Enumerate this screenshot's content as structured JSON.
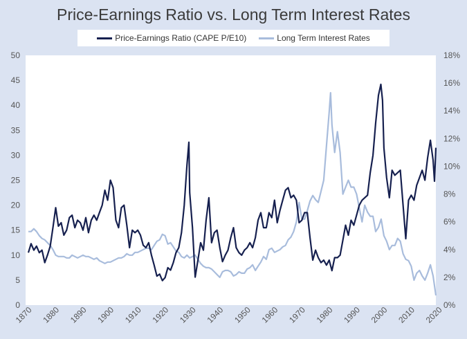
{
  "chart_data": {
    "type": "line",
    "title": "Price-Earnings Ratio vs. Long Term Interest Rates",
    "legend": {
      "position": "top"
    },
    "grid": false,
    "x_axis": {
      "range": [
        1870,
        2020
      ],
      "ticks": [
        "1870",
        "1880",
        "1890",
        "1900",
        "1910",
        "1920",
        "1930",
        "1940",
        "1950",
        "1960",
        "1970",
        "1980",
        "1990",
        "2000",
        "2010",
        "2020"
      ]
    },
    "y_axis_left": {
      "range": [
        0,
        50
      ],
      "ticks": [
        "0",
        "5",
        "10",
        "15",
        "20",
        "25",
        "30",
        "35",
        "40",
        "45",
        "50"
      ]
    },
    "y_axis_right": {
      "range": [
        0,
        18
      ],
      "ticks": [
        "0%",
        "2%",
        "4%",
        "6%",
        "8%",
        "10%",
        "12%",
        "14%",
        "16%",
        "18%"
      ]
    },
    "series": [
      {
        "name": "Price-Earnings Ratio (CAPE P/E10)",
        "axis": "left",
        "color": "#16204f",
        "points": [
          [
            1871,
            10.5
          ],
          [
            1872,
            12.3
          ],
          [
            1873,
            11.0
          ],
          [
            1874,
            11.8
          ],
          [
            1875,
            10.5
          ],
          [
            1876,
            11.0
          ],
          [
            1877,
            8.5
          ],
          [
            1878,
            10.0
          ],
          [
            1879,
            11.8
          ],
          [
            1880,
            15.5
          ],
          [
            1881,
            19.5
          ],
          [
            1882,
            15.8
          ],
          [
            1883,
            16.5
          ],
          [
            1884,
            14.0
          ],
          [
            1885,
            15.0
          ],
          [
            1886,
            17.5
          ],
          [
            1887,
            18.0
          ],
          [
            1888,
            15.5
          ],
          [
            1889,
            17.0
          ],
          [
            1890,
            16.5
          ],
          [
            1891,
            15.0
          ],
          [
            1892,
            17.5
          ],
          [
            1893,
            14.5
          ],
          [
            1894,
            17.0
          ],
          [
            1895,
            18.0
          ],
          [
            1896,
            17.0
          ],
          [
            1897,
            18.5
          ],
          [
            1898,
            20.0
          ],
          [
            1899,
            23.0
          ],
          [
            1900,
            21.0
          ],
          [
            1901,
            25.0
          ],
          [
            1902,
            23.5
          ],
          [
            1903,
            17.0
          ],
          [
            1904,
            15.5
          ],
          [
            1905,
            19.5
          ],
          [
            1906,
            20.0
          ],
          [
            1907,
            16.0
          ],
          [
            1908,
            11.5
          ],
          [
            1909,
            15.0
          ],
          [
            1910,
            14.5
          ],
          [
            1911,
            15.0
          ],
          [
            1912,
            14.0
          ],
          [
            1913,
            12.0
          ],
          [
            1914,
            11.5
          ],
          [
            1915,
            12.5
          ],
          [
            1916,
            10.0
          ],
          [
            1917,
            8.0
          ],
          [
            1918,
            5.8
          ],
          [
            1919,
            6.2
          ],
          [
            1920,
            4.9
          ],
          [
            1921,
            5.5
          ],
          [
            1922,
            7.5
          ],
          [
            1923,
            7.0
          ],
          [
            1924,
            8.5
          ],
          [
            1925,
            10.5
          ],
          [
            1926,
            11.5
          ],
          [
            1927,
            14.5
          ],
          [
            1928,
            20.0
          ],
          [
            1929,
            28.0
          ],
          [
            1929.7,
            32.6
          ],
          [
            1930,
            22.5
          ],
          [
            1931,
            15.5
          ],
          [
            1932,
            5.6
          ],
          [
            1933,
            9.0
          ],
          [
            1934,
            12.5
          ],
          [
            1935,
            11.0
          ],
          [
            1936,
            17.0
          ],
          [
            1937,
            21.5
          ],
          [
            1938,
            12.5
          ],
          [
            1939,
            14.5
          ],
          [
            1940,
            15.0
          ],
          [
            1941,
            11.5
          ],
          [
            1942,
            8.7
          ],
          [
            1943,
            10.0
          ],
          [
            1944,
            11.0
          ],
          [
            1945,
            13.5
          ],
          [
            1946,
            15.5
          ],
          [
            1947,
            11.5
          ],
          [
            1948,
            10.5
          ],
          [
            1949,
            10.0
          ],
          [
            1950,
            11.0
          ],
          [
            1951,
            11.5
          ],
          [
            1952,
            12.5
          ],
          [
            1953,
            11.5
          ],
          [
            1954,
            13.5
          ],
          [
            1955,
            17.0
          ],
          [
            1956,
            18.5
          ],
          [
            1957,
            15.5
          ],
          [
            1958,
            15.5
          ],
          [
            1959,
            18.5
          ],
          [
            1960,
            17.5
          ],
          [
            1961,
            21.0
          ],
          [
            1962,
            16.5
          ],
          [
            1963,
            19.0
          ],
          [
            1964,
            21.0
          ],
          [
            1965,
            23.0
          ],
          [
            1966,
            23.5
          ],
          [
            1967,
            21.5
          ],
          [
            1968,
            22.0
          ],
          [
            1969,
            21.0
          ],
          [
            1970,
            16.5
          ],
          [
            1971,
            17.0
          ],
          [
            1972,
            18.5
          ],
          [
            1973,
            18.5
          ],
          [
            1974,
            13.5
          ],
          [
            1975,
            9.0
          ],
          [
            1976,
            11.0
          ],
          [
            1977,
            9.5
          ],
          [
            1978,
            8.5
          ],
          [
            1979,
            9.0
          ],
          [
            1980,
            8.0
          ],
          [
            1981,
            9.0
          ],
          [
            1982,
            6.9
          ],
          [
            1983,
            9.5
          ],
          [
            1984,
            9.5
          ],
          [
            1985,
            10.0
          ],
          [
            1986,
            13.0
          ],
          [
            1987,
            16.0
          ],
          [
            1988,
            14.0
          ],
          [
            1989,
            17.0
          ],
          [
            1990,
            16.0
          ],
          [
            1991,
            18.0
          ],
          [
            1992,
            20.0
          ],
          [
            1993,
            21.0
          ],
          [
            1994,
            21.5
          ],
          [
            1995,
            22.0
          ],
          [
            1996,
            26.5
          ],
          [
            1997,
            30.0
          ],
          [
            1998,
            36.5
          ],
          [
            1999,
            42.0
          ],
          [
            1999.9,
            44.2
          ],
          [
            2000.5,
            41.0
          ],
          [
            2001,
            31.5
          ],
          [
            2002,
            25.5
          ],
          [
            2003,
            21.5
          ],
          [
            2004,
            27.0
          ],
          [
            2005,
            26.0
          ],
          [
            2006,
            26.5
          ],
          [
            2007,
            27.0
          ],
          [
            2008,
            20.0
          ],
          [
            2009,
            13.3
          ],
          [
            2010,
            21.0
          ],
          [
            2011,
            22.0
          ],
          [
            2012,
            21.0
          ],
          [
            2013,
            24.0
          ],
          [
            2014,
            25.5
          ],
          [
            2015,
            27.0
          ],
          [
            2016,
            25.0
          ],
          [
            2017,
            29.5
          ],
          [
            2018,
            33.0
          ],
          [
            2019,
            29.0
          ],
          [
            2019.5,
            24.8
          ],
          [
            2020,
            31.5
          ]
        ]
      },
      {
        "name": "Long Term Interest Rates",
        "axis": "right",
        "color": "#a8bcdc",
        "points": [
          [
            1871,
            5.3
          ],
          [
            1872,
            5.3
          ],
          [
            1873,
            5.5
          ],
          [
            1874,
            5.3
          ],
          [
            1875,
            5.0
          ],
          [
            1876,
            4.8
          ],
          [
            1877,
            4.7
          ],
          [
            1878,
            4.5
          ],
          [
            1879,
            4.3
          ],
          [
            1880,
            4.0
          ],
          [
            1881,
            3.6
          ],
          [
            1882,
            3.5
          ],
          [
            1883,
            3.5
          ],
          [
            1884,
            3.5
          ],
          [
            1885,
            3.4
          ],
          [
            1886,
            3.4
          ],
          [
            1887,
            3.6
          ],
          [
            1888,
            3.5
          ],
          [
            1889,
            3.4
          ],
          [
            1890,
            3.5
          ],
          [
            1891,
            3.6
          ],
          [
            1892,
            3.5
          ],
          [
            1893,
            3.5
          ],
          [
            1894,
            3.4
          ],
          [
            1895,
            3.3
          ],
          [
            1896,
            3.4
          ],
          [
            1897,
            3.2
          ],
          [
            1898,
            3.1
          ],
          [
            1899,
            3.0
          ],
          [
            1900,
            3.1
          ],
          [
            1901,
            3.1
          ],
          [
            1902,
            3.2
          ],
          [
            1903,
            3.3
          ],
          [
            1904,
            3.4
          ],
          [
            1905,
            3.4
          ],
          [
            1906,
            3.5
          ],
          [
            1907,
            3.7
          ],
          [
            1908,
            3.6
          ],
          [
            1909,
            3.6
          ],
          [
            1910,
            3.8
          ],
          [
            1911,
            3.8
          ],
          [
            1912,
            3.9
          ],
          [
            1913,
            4.0
          ],
          [
            1914,
            4.1
          ],
          [
            1915,
            4.1
          ],
          [
            1916,
            4.0
          ],
          [
            1917,
            4.3
          ],
          [
            1918,
            4.6
          ],
          [
            1919,
            4.7
          ],
          [
            1920,
            5.1
          ],
          [
            1921,
            5.0
          ],
          [
            1922,
            4.4
          ],
          [
            1923,
            4.5
          ],
          [
            1924,
            4.2
          ],
          [
            1925,
            3.9
          ],
          [
            1926,
            3.8
          ],
          [
            1927,
            3.5
          ],
          [
            1928,
            3.4
          ],
          [
            1929,
            3.6
          ],
          [
            1930,
            3.4
          ],
          [
            1931,
            3.5
          ],
          [
            1932,
            3.6
          ],
          [
            1933,
            3.3
          ],
          [
            1934,
            3.0
          ],
          [
            1935,
            2.8
          ],
          [
            1936,
            2.7
          ],
          [
            1937,
            2.7
          ],
          [
            1938,
            2.6
          ],
          [
            1939,
            2.4
          ],
          [
            1940,
            2.2
          ],
          [
            1941,
            2.0
          ],
          [
            1942,
            2.4
          ],
          [
            1943,
            2.5
          ],
          [
            1944,
            2.5
          ],
          [
            1945,
            2.4
          ],
          [
            1946,
            2.1
          ],
          [
            1947,
            2.2
          ],
          [
            1948,
            2.4
          ],
          [
            1949,
            2.3
          ],
          [
            1950,
            2.3
          ],
          [
            1951,
            2.6
          ],
          [
            1952,
            2.7
          ],
          [
            1953,
            2.9
          ],
          [
            1954,
            2.5
          ],
          [
            1955,
            2.8
          ],
          [
            1956,
            3.1
          ],
          [
            1957,
            3.5
          ],
          [
            1958,
            3.3
          ],
          [
            1959,
            4.0
          ],
          [
            1960,
            4.1
          ],
          [
            1961,
            3.8
          ],
          [
            1962,
            3.9
          ],
          [
            1963,
            4.0
          ],
          [
            1964,
            4.2
          ],
          [
            1965,
            4.3
          ],
          [
            1966,
            4.7
          ],
          [
            1967,
            4.9
          ],
          [
            1968,
            5.3
          ],
          [
            1969,
            6.0
          ],
          [
            1970,
            7.4
          ],
          [
            1971,
            6.2
          ],
          [
            1972,
            6.2
          ],
          [
            1973,
            6.8
          ],
          [
            1974,
            7.5
          ],
          [
            1975,
            7.9
          ],
          [
            1976,
            7.6
          ],
          [
            1977,
            7.4
          ],
          [
            1978,
            8.2
          ],
          [
            1979,
            9.0
          ],
          [
            1980,
            11.5
          ],
          [
            1981,
            13.9
          ],
          [
            1981.5,
            15.3
          ],
          [
            1982,
            13.0
          ],
          [
            1983,
            11.0
          ],
          [
            1984,
            12.5
          ],
          [
            1985,
            11.0
          ],
          [
            1986,
            8.0
          ],
          [
            1987,
            8.5
          ],
          [
            1988,
            9.0
          ],
          [
            1989,
            8.5
          ],
          [
            1990,
            8.5
          ],
          [
            1991,
            8.0
          ],
          [
            1992,
            7.0
          ],
          [
            1993,
            6.0
          ],
          [
            1994,
            7.2
          ],
          [
            1995,
            6.7
          ],
          [
            1996,
            6.4
          ],
          [
            1997,
            6.4
          ],
          [
            1998,
            5.3
          ],
          [
            1999,
            5.6
          ],
          [
            2000,
            6.2
          ],
          [
            2001,
            5.0
          ],
          [
            2002,
            4.6
          ],
          [
            2003,
            4.0
          ],
          [
            2004,
            4.3
          ],
          [
            2005,
            4.3
          ],
          [
            2006,
            4.8
          ],
          [
            2007,
            4.6
          ],
          [
            2008,
            3.7
          ],
          [
            2009,
            3.3
          ],
          [
            2010,
            3.2
          ],
          [
            2011,
            2.8
          ],
          [
            2012,
            1.8
          ],
          [
            2013,
            2.3
          ],
          [
            2014,
            2.5
          ],
          [
            2015,
            2.1
          ],
          [
            2016,
            1.8
          ],
          [
            2017,
            2.3
          ],
          [
            2018,
            2.9
          ],
          [
            2019,
            2.1
          ],
          [
            2020,
            0.7
          ]
        ]
      }
    ]
  }
}
